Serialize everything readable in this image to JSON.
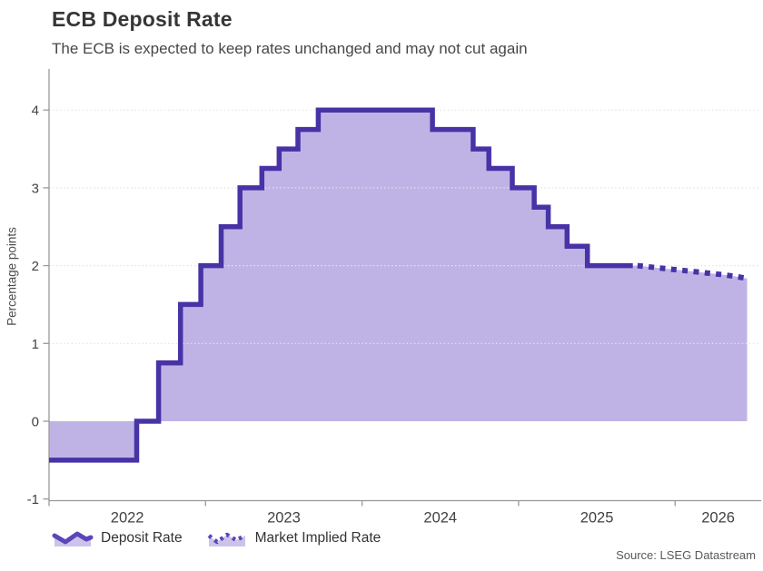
{
  "header": {
    "title": "ECB Deposit Rate",
    "subtitle": "The ECB is expected to keep rates unchanged and may not cut again"
  },
  "source": "Source: LSEG Datastream",
  "legend": [
    {
      "label": "Deposit Rate",
      "style": "solid"
    },
    {
      "label": "Market Implied Rate",
      "style": "dotted"
    }
  ],
  "chart_data": {
    "type": "area",
    "title": "ECB Deposit Rate",
    "xlabel": "",
    "ylabel": "Percentage points",
    "xlim": [
      2022.0,
      2026.55
    ],
    "ylim": [
      -1.08,
      4.38
    ],
    "x_ticks": [
      2022,
      2023,
      2024,
      2025,
      2026
    ],
    "x_tick_labels": [
      "2022",
      "2023",
      "2024",
      "2025",
      "2026"
    ],
    "y_ticks": [
      -1,
      0,
      1,
      2,
      3,
      4
    ],
    "grid_y": [
      1,
      2,
      3,
      4
    ],
    "baseline": 0,
    "grid": "dotted horizontal",
    "legend_position": "bottom-left",
    "series": [
      {
        "name": "Deposit Rate",
        "style": "step-solid",
        "points": [
          [
            2022.0,
            -0.5
          ],
          [
            2022.56,
            0.0
          ],
          [
            2022.7,
            0.75
          ],
          [
            2022.84,
            1.5
          ],
          [
            2022.97,
            2.0
          ],
          [
            2023.1,
            2.5
          ],
          [
            2023.22,
            3.0
          ],
          [
            2023.36,
            3.25
          ],
          [
            2023.47,
            3.5
          ],
          [
            2023.59,
            3.75
          ],
          [
            2023.72,
            4.0
          ],
          [
            2024.45,
            3.75
          ],
          [
            2024.71,
            3.5
          ],
          [
            2024.81,
            3.25
          ],
          [
            2024.96,
            3.0
          ],
          [
            2025.1,
            2.75
          ],
          [
            2025.19,
            2.5
          ],
          [
            2025.31,
            2.25
          ],
          [
            2025.44,
            2.0
          ],
          [
            2025.73,
            2.0
          ]
        ]
      },
      {
        "name": "Market Implied Rate",
        "style": "dotted",
        "points": [
          [
            2025.76,
            2.0
          ],
          [
            2025.83,
            1.985
          ],
          [
            2025.9,
            1.97
          ],
          [
            2025.97,
            1.955
          ],
          [
            2026.04,
            1.94
          ],
          [
            2026.11,
            1.925
          ],
          [
            2026.18,
            1.91
          ],
          [
            2026.25,
            1.895
          ],
          [
            2026.32,
            1.88
          ],
          [
            2026.39,
            1.86
          ],
          [
            2026.46,
            1.835
          ]
        ]
      }
    ],
    "colors": {
      "line": "#4733a6",
      "fill": "#bfb3e6",
      "grid": "#e3e3e3",
      "axis": "#999999",
      "tick_label": "#424242",
      "legend_icon_line": "#5a46b8",
      "legend_icon_fill": "#cdc3ea"
    }
  }
}
